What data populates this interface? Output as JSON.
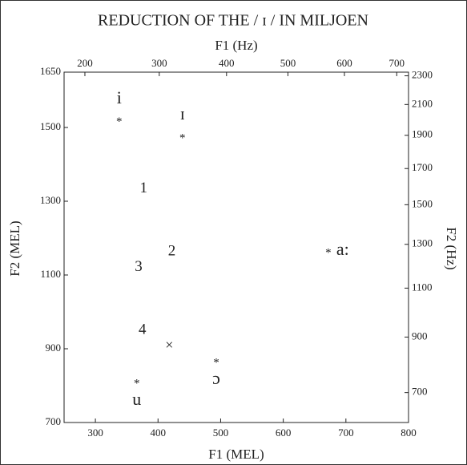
{
  "chart_data": {
    "type": "scatter",
    "title": "REDUCTION OF THE / ɪ / IN MILJOEN",
    "x_label": "F1 (MEL)",
    "y_label": "F2 (MEL)",
    "x2_label": "F1 (Hz)",
    "y2_label": "F2 (Hz)",
    "xlim": [
      250,
      800
    ],
    "ylim": [
      700,
      1650
    ],
    "xticks": [
      300,
      400,
      500,
      600,
      700,
      800
    ],
    "yticks": [
      700,
      900,
      1100,
      1300,
      1500,
      1650
    ],
    "x2scale": "mel",
    "y2scale": "mel",
    "x2ticks": [
      200,
      300,
      400,
      500,
      600,
      700
    ],
    "y2ticks": [
      700,
      900,
      1100,
      1300,
      1500,
      1700,
      1900,
      2100,
      2300
    ],
    "points": [
      {
        "x": 338,
        "y": 1520,
        "marker": "*",
        "label": "i",
        "label_pos": "above"
      },
      {
        "x": 439,
        "y": 1476,
        "marker": "*",
        "label": "ɪ",
        "label_pos": "above"
      },
      {
        "x": 377,
        "y": 1333,
        "label": "1"
      },
      {
        "x": 422,
        "y": 1163,
        "label": "2"
      },
      {
        "x": 369,
        "y": 1120,
        "label": "3"
      },
      {
        "x": 375,
        "y": 950,
        "label": "4"
      },
      {
        "x": 418,
        "y": 907,
        "marker": "×"
      },
      {
        "x": 366,
        "y": 811,
        "marker": "*",
        "label": "u",
        "label_pos": "below"
      },
      {
        "x": 493,
        "y": 867,
        "marker": "*",
        "label": "ɔ",
        "label_pos": "below"
      },
      {
        "x": 672,
        "y": 1165,
        "marker": "*",
        "label": "a:",
        "label_pos": "right"
      }
    ]
  }
}
